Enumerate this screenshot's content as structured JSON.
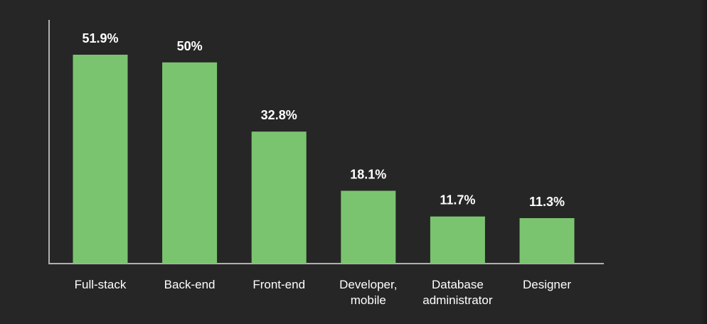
{
  "chart_data": {
    "type": "bar",
    "categories": [
      [
        "Full-stack"
      ],
      [
        "Back-end"
      ],
      [
        "Front-end"
      ],
      [
        "Developer,",
        "mobile"
      ],
      [
        "Database",
        "administrator"
      ],
      [
        "Designer"
      ]
    ],
    "values": [
      51.9,
      50,
      32.8,
      18.1,
      11.7,
      11.3
    ],
    "value_labels": [
      "51.9%",
      "50%",
      "32.8%",
      "18.1%",
      "11.7%",
      "11.3%"
    ],
    "title": "",
    "xlabel": "",
    "ylabel": "",
    "ylim": [
      0,
      51.9
    ],
    "grid": false,
    "colors": {
      "background": "#262626",
      "bar": "#7bc46f",
      "axis": "#b0b0b0",
      "text": "#ffffff"
    }
  }
}
